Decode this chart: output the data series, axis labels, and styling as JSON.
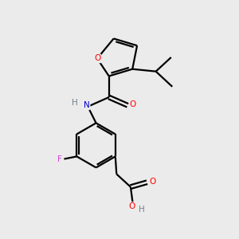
{
  "bg_color": "#ebebeb",
  "bond_width": 1.6,
  "atom_colors": {
    "O": "#ff0000",
    "N": "#0000cc",
    "F": "#cc44cc",
    "H_gray": "#708090",
    "C": "#000000"
  },
  "font_size": 7.5
}
